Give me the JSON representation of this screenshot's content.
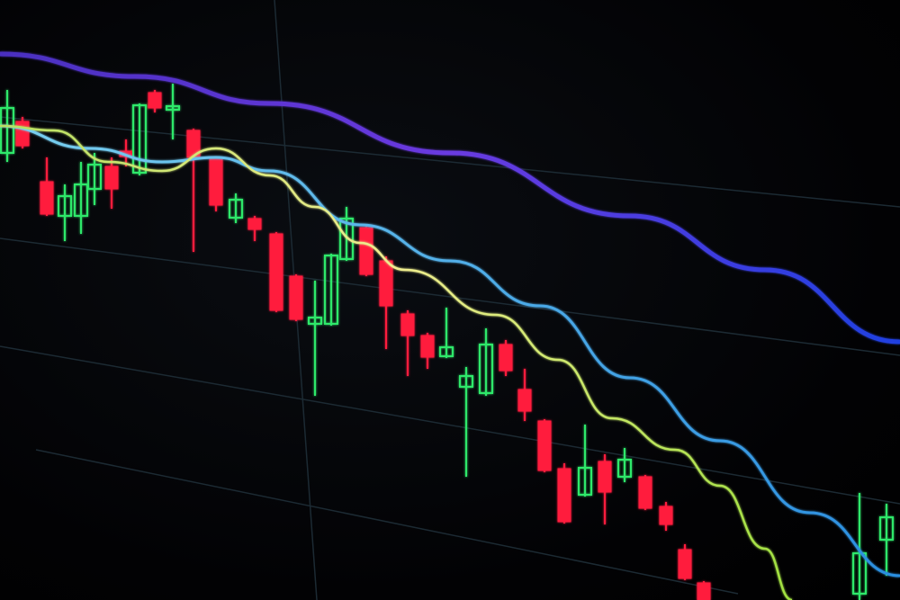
{
  "colors": {
    "background": "#020305",
    "bearish": "#ff1f3d",
    "bullish": "#2ee86a",
    "ma_slow_start": "#5a3ad8",
    "ma_slow_end": "#2448e8",
    "ma_mid": "#4fb8f0",
    "ma_fast": "#e8e36a",
    "grid": "#1c2a33"
  },
  "lines": [
    "ma-slow",
    "ma-mid",
    "ma-fast"
  ]
}
